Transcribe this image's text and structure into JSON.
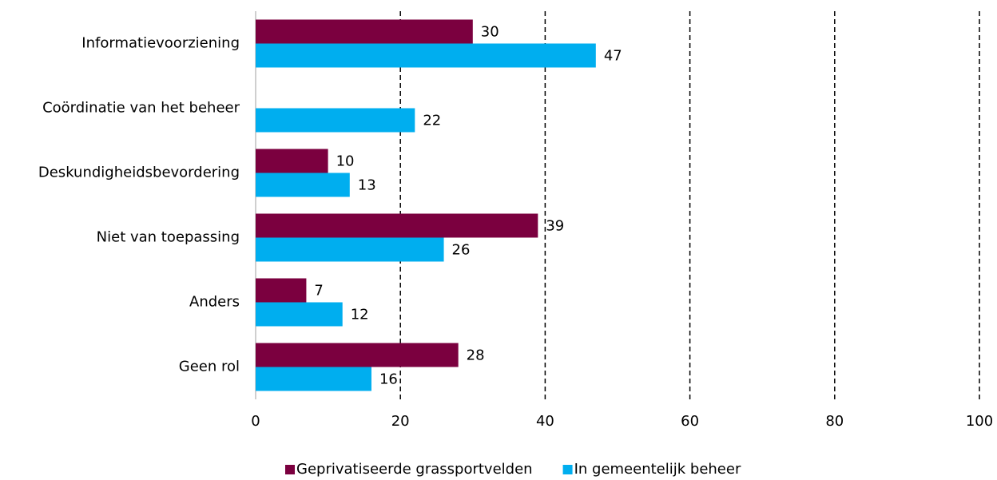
{
  "chart_data": {
    "type": "hbar",
    "categories": [
      "Informatievoorziening",
      "Coördinatie van het beheer",
      "Deskundigheidsbevordering",
      "Niet van toepassing",
      "Anders",
      "Geen rol"
    ],
    "series": [
      {
        "name": "Geprivatiseerde grassportvelden",
        "color": "#7b003f",
        "values": [
          30,
          null,
          10,
          39,
          7,
          28
        ]
      },
      {
        "name": "In gemeentelijk beheer",
        "color": "#00aeef",
        "values": [
          47,
          22,
          13,
          26,
          12,
          16
        ]
      }
    ],
    "xlim": [
      0,
      100
    ],
    "xticks": [
      0,
      20,
      40,
      60,
      80,
      100
    ],
    "grid": true,
    "legend": "bottom"
  }
}
